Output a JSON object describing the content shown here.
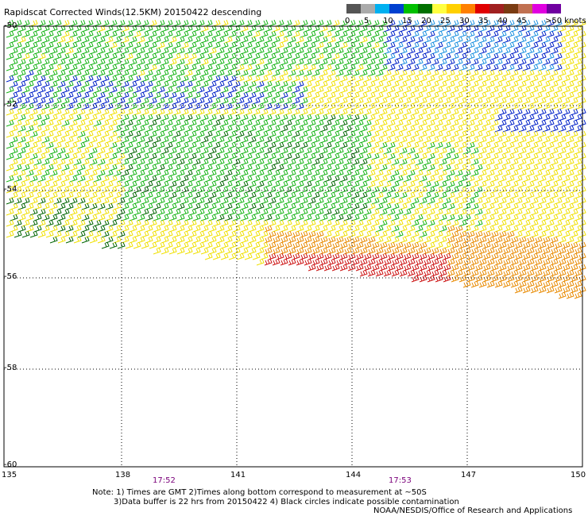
{
  "title": "Rapidscat Corrected Winds(12.5KM) 20150422 descending",
  "legend": {
    "colors": [
      "#555555",
      "#aaaaaa",
      "#00b0f0",
      "#0040d0",
      "#00c000",
      "#007000",
      "#ffff40",
      "#ffd000",
      "#ff8000",
      "#e00000",
      "#a02020",
      "#7a3b12",
      "#c07050",
      "#e000e0",
      "#7000a0"
    ],
    "labels": [
      "0",
      "5",
      "10",
      "15",
      "20",
      "25",
      "30",
      "35",
      "40",
      "45",
      ">50 knots"
    ]
  },
  "axes": {
    "y_labels": [
      "-50",
      "-52",
      "-54",
      "-56",
      "-58",
      "-60"
    ],
    "x_labels": [
      "135",
      "138",
      "141",
      "144",
      "147",
      "150"
    ]
  },
  "times": [
    "17:52",
    "17:53"
  ],
  "notes": [
    "Note: 1) Times are GMT 2)Times along bottom correspond to measurement at ~50S",
    "3)Data buffer is 22 hrs from 20150422 4) Black circles indicate possible contamination",
    "NOAA/NESDIS/Office of Research and Applications"
  ],
  "map": {
    "lon_range": [
      135,
      150
    ],
    "lat_range": [
      -60,
      -50
    ],
    "speed_colors": {
      "blue": "#0020c8",
      "lightblue": "#1a90e0",
      "green": "#14b414",
      "darkgreen": "#006400",
      "yellow": "#f0e000",
      "orange": "#e88a00",
      "red": "#cc1010"
    }
  }
}
